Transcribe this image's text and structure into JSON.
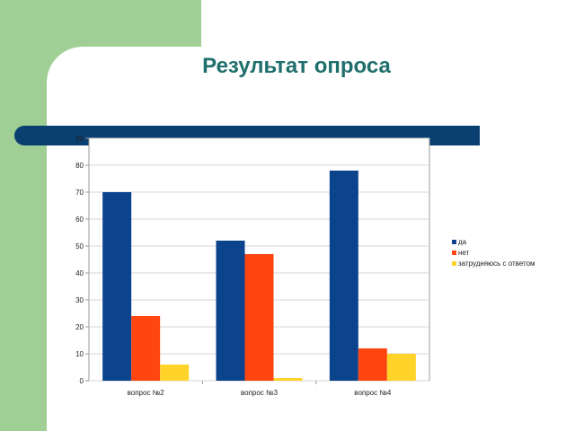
{
  "title": "Результат опроса",
  "chart_data": {
    "type": "bar",
    "categories": [
      "вопрос №2",
      "вопрос №3",
      "вопрос №4"
    ],
    "series": [
      {
        "name": "да",
        "values": [
          70,
          52,
          78
        ],
        "color": "#0b438c"
      },
      {
        "name": "нет",
        "values": [
          24,
          47,
          12
        ],
        "color": "#ff4510"
      },
      {
        "name": "затрудняюсь с ответом",
        "values": [
          6,
          1,
          10
        ],
        "color": "#ffd32a"
      }
    ],
    "ylim": [
      0,
      90
    ],
    "yticks": [
      "0",
      "10",
      "20",
      "30",
      "40",
      "50",
      "60",
      "70",
      "80",
      "90"
    ],
    "grid": true,
    "legend_position": "right"
  }
}
